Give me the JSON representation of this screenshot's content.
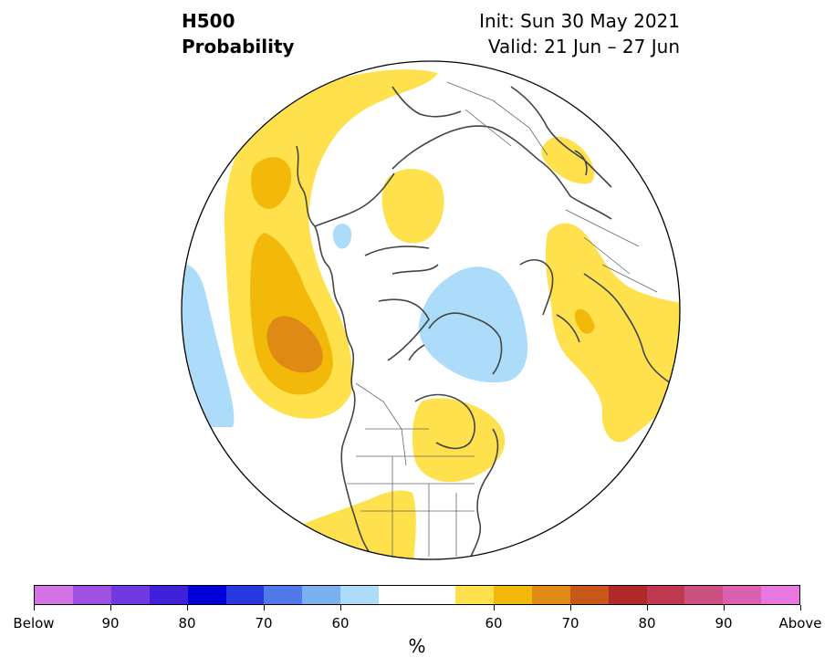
{
  "title": {
    "left_line1": "H500",
    "left_line2": "Probability",
    "right_line1": "Init: Sun 30 May 2021",
    "right_line2": "Valid: 21 Jun – 27 Jun"
  },
  "colorbar": {
    "unit": "%",
    "colors": [
      "#d472e8",
      "#a050e0",
      "#7038e0",
      "#4020d8",
      "#0000d8",
      "#2838e0",
      "#5078e8",
      "#78b0f0",
      "#acdcfa",
      "#ffffff",
      "#ffffff",
      "#ffe14d",
      "#f2b90a",
      "#de8a14",
      "#c85818",
      "#b02828",
      "#c03850",
      "#cc5080",
      "#dc60b0",
      "#e878e0"
    ],
    "labels": [
      "Below",
      "90",
      "80",
      "70",
      "60",
      "60",
      "70",
      "80",
      "90",
      "Above"
    ]
  },
  "map": {
    "projection": "polar",
    "region": "Northern Hemisphere",
    "shading": [
      {
        "anomaly": "above",
        "level": "50-60",
        "color": "#ffe14d"
      },
      {
        "anomaly": "above",
        "level": "60-70",
        "color": "#f2b90a"
      },
      {
        "anomaly": "above",
        "level": "70-80",
        "color": "#de8a14"
      },
      {
        "anomaly": "below",
        "level": "50-60",
        "color": "#acdcfa"
      }
    ]
  }
}
